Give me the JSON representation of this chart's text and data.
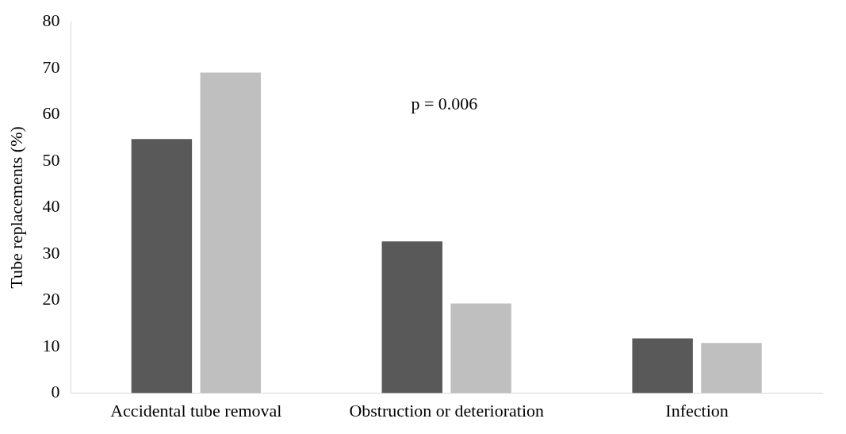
{
  "chart_data": {
    "type": "bar",
    "ylabel": "Tube replacements (%)",
    "categories": [
      "Accidental tube removal",
      "Obstruction or deterioration",
      "Infection"
    ],
    "series": [
      {
        "color": "#595959",
        "values": [
          54.7,
          32.7,
          11.8
        ]
      },
      {
        "color": "#bfbfbf",
        "values": [
          69,
          19.3,
          10.8
        ]
      }
    ],
    "ylim": [
      0,
      80
    ],
    "yticks": [
      0,
      10,
      20,
      30,
      40,
      50,
      60,
      70,
      80
    ],
    "grid": false,
    "legend": false,
    "annotations": [
      "p = 0.006"
    ]
  }
}
